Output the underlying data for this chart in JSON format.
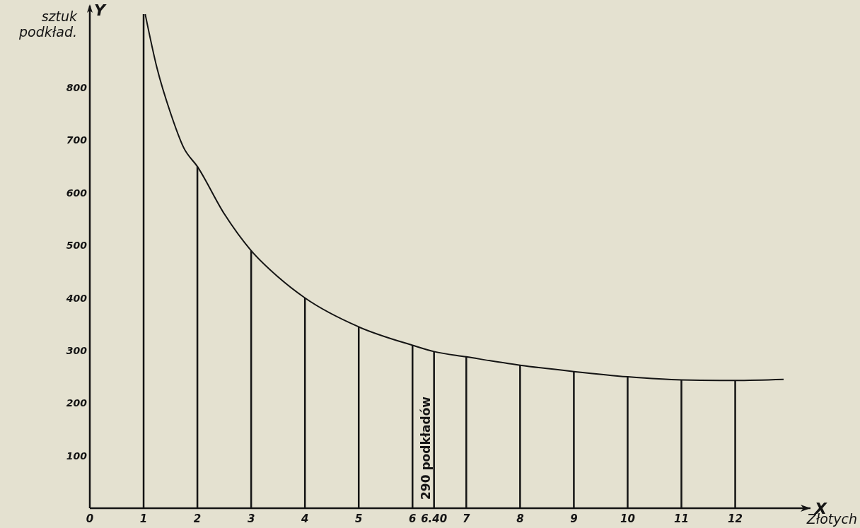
{
  "chart_data": {
    "type": "line",
    "xlabel": "Złotych",
    "ylabel": "sztuk podkład.",
    "xlim": [
      0,
      13.4
    ],
    "ylim": [
      0,
      940
    ],
    "xticks": [
      0,
      1,
      2,
      3,
      4,
      5,
      6,
      {
        "value": 6.4,
        "label": "6.40"
      },
      7,
      8,
      9,
      10,
      11,
      12
    ],
    "yticks": [
      100,
      200,
      300,
      400,
      500,
      600,
      700,
      800
    ],
    "grid": false,
    "marker": "none",
    "line_style": "solid",
    "annotations": [
      "290 podkładów",
      "Y",
      "X"
    ],
    "series": [
      {
        "color": "#141414",
        "x": [
          1.03,
          1.25,
          1.5,
          1.75,
          2,
          2.5,
          3,
          3.5,
          4,
          5,
          6,
          6.4,
          7,
          8,
          9,
          10,
          11,
          12,
          12.9
        ],
        "values": [
          940,
          837,
          752,
          685,
          650,
          560,
          490,
          440,
          400,
          345,
          310,
          298,
          288,
          272,
          260,
          250,
          244,
          243,
          245
        ]
      },
      {
        "type": "bar",
        "color": "#141414",
        "x": [
          1,
          2,
          3,
          4,
          5,
          6,
          6.4,
          7,
          8,
          9,
          10,
          11,
          12
        ],
        "values": [
          940,
          650,
          490,
          400,
          345,
          310,
          298,
          288,
          272,
          260,
          250,
          244,
          243
        ]
      }
    ]
  }
}
